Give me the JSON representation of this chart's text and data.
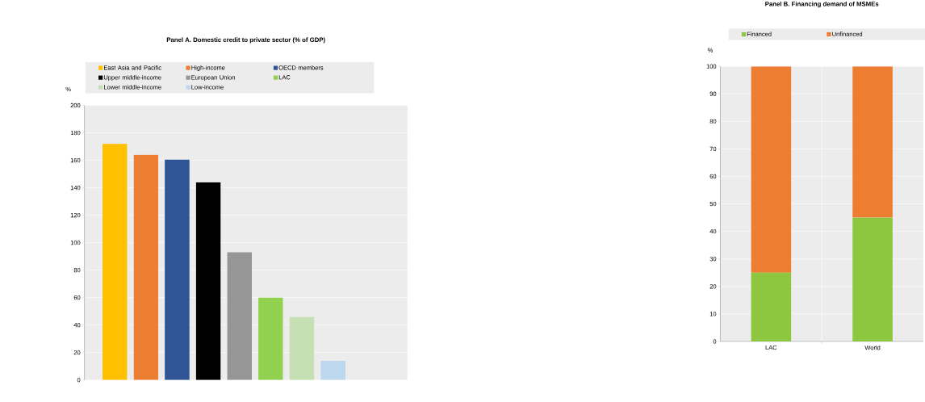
{
  "chart_data": [
    {
      "type": "bar",
      "title": "Panel A. Domestic credit to private sector (% of GDP)",
      "ylabel": "%",
      "categories": [
        null
      ],
      "series": [
        {
          "name": "East Asia and Pacific",
          "color": "#ffc000",
          "values": [
            172
          ]
        },
        {
          "name": "High-income",
          "color": "#ed7d31",
          "values": [
            164
          ]
        },
        {
          "name": "OECD members",
          "color": "#2f5597",
          "values": [
            160.5
          ]
        },
        {
          "name": "Upper middle-income",
          "color": "#000000",
          "values": [
            144
          ]
        },
        {
          "name": "European Union",
          "color": "#969696",
          "values": [
            93
          ]
        },
        {
          "name": "LAC",
          "color": "#92d050",
          "values": [
            60
          ]
        },
        {
          "name": "Lower middle-income",
          "color": "#c6e0b4",
          "values": [
            46
          ]
        },
        {
          "name": "Low-income",
          "color": "#bdd7ee",
          "values": [
            14
          ]
        }
      ],
      "ylim": [
        0,
        200
      ],
      "yticks": [
        0,
        20,
        40,
        60,
        80,
        100,
        120,
        140,
        160,
        180,
        200
      ],
      "grid": "y",
      "legend": "top"
    },
    {
      "type": "bar",
      "title": "Panel B. Financing demand of MSMEs",
      "ylabel": "%",
      "categories": [
        "LAC",
        "World"
      ],
      "stacked": true,
      "series": [
        {
          "name": "Financed",
          "color": "#8dc63f",
          "values": [
            25,
            45
          ]
        },
        {
          "name": "Unfinanced",
          "color": "#ed7d31",
          "values": [
            75,
            55
          ]
        }
      ],
      "ylim": [
        0,
        100
      ],
      "yticks": [
        0,
        10,
        20,
        30,
        40,
        50,
        60,
        70,
        80,
        90,
        100
      ],
      "grid": true,
      "legend": "top"
    }
  ]
}
